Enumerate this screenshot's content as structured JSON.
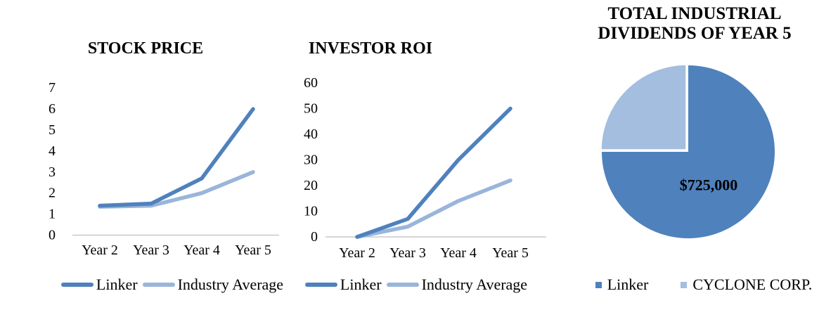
{
  "page": {
    "background": "#FFFFFF"
  },
  "chart_data": [
    {
      "type": "line",
      "title": "STOCK PRICE",
      "categories": [
        "Year 2",
        "Year 3",
        "Year 4",
        "Year 5"
      ],
      "series": [
        {
          "name": "Linker",
          "color": "#4F81BD",
          "values": [
            1.4,
            1.5,
            2.7,
            6.0
          ]
        },
        {
          "name": "Industry Average",
          "color": "#99B5DA",
          "values": [
            1.35,
            1.4,
            2.0,
            3.0
          ]
        }
      ],
      "ylim": [
        0,
        7
      ],
      "ytick_step": 1,
      "grid": false,
      "legend_position": "bottom",
      "axis_color": "#C8C8C8",
      "text_color": "#000000"
    },
    {
      "type": "line",
      "title": "INVESTOR ROI",
      "categories": [
        "Year 2",
        "Year 3",
        "Year 4",
        "Year 5"
      ],
      "series": [
        {
          "name": "Linker",
          "color": "#4F81BD",
          "values": [
            0,
            7,
            30,
            50
          ]
        },
        {
          "name": "Industry Average",
          "color": "#99B5DA",
          "values": [
            0,
            4,
            14,
            22
          ]
        }
      ],
      "ylim": [
        0,
        60
      ],
      "ytick_step": 10,
      "grid": false,
      "legend_position": "bottom",
      "axis_color": "#C8C8C8",
      "text_color": "#000000"
    },
    {
      "type": "pie",
      "title": "TOTAL INDUSTRIAL DIVIDENDS OF YEAR 5",
      "slices": [
        {
          "name": "Linker",
          "pct": 75,
          "color": "#4F81BD",
          "label": "$725,000"
        },
        {
          "name": "CYCLONE CORP.",
          "pct": 25,
          "color": "#A3BEDF",
          "label": ""
        }
      ],
      "start_angle_deg": 0,
      "direction": "clockwise",
      "separator_color": "#FFFFFF",
      "label_color": "#000000",
      "legend_position": "bottom"
    }
  ]
}
